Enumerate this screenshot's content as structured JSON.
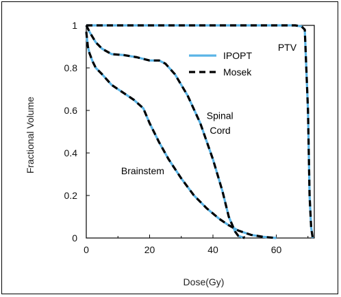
{
  "chart_data": {
    "type": "line",
    "title": "",
    "xlabel": "Dose(Gy)",
    "ylabel": "Fractional Volume",
    "xlim": [
      0,
      72
    ],
    "ylim": [
      0,
      1
    ],
    "x_ticks": [
      0,
      20,
      40,
      60
    ],
    "y_ticks": [
      0,
      0.2,
      0.4,
      0.6,
      0.8,
      1
    ],
    "x_tick_labels": [
      "0",
      "20",
      "40",
      "60"
    ],
    "y_tick_labels": [
      "0",
      "0.2",
      "0.4",
      "0.6",
      "0.8",
      "1"
    ],
    "grid": false,
    "legend_position": "top-right",
    "legend": [
      {
        "name": "IPOPT",
        "color": "#5ab4e6",
        "style": "solid"
      },
      {
        "name": "Mosek",
        "color": "#000000",
        "style": "dashed"
      }
    ],
    "annotations": [
      {
        "text": "PTV",
        "x": 60.5,
        "y": 0.88
      },
      {
        "text": "Spinal",
        "x": 38,
        "y": 0.56
      },
      {
        "text": "Cord",
        "x": 39,
        "y": 0.49
      },
      {
        "text": "Brainstem",
        "x": 11,
        "y": 0.3
      }
    ],
    "curves": [
      {
        "structure": "PTV",
        "x": [
          0,
          1,
          2,
          66,
          68,
          69,
          70,
          70.5,
          71,
          71.5
        ],
        "y": [
          1,
          1,
          1,
          1,
          0.995,
          0.98,
          0.6,
          0.2,
          0.05,
          0
        ]
      },
      {
        "structure": "Spinal Cord",
        "x": [
          0,
          1,
          3,
          5,
          8,
          12,
          16,
          20,
          23,
          25,
          28,
          32,
          36,
          40,
          43,
          45,
          47,
          48,
          50
        ],
        "y": [
          1,
          0.97,
          0.92,
          0.89,
          0.865,
          0.86,
          0.85,
          0.835,
          0.835,
          0.82,
          0.77,
          0.67,
          0.54,
          0.37,
          0.22,
          0.1,
          0.03,
          0.01,
          0
        ]
      },
      {
        "structure": "Brainstem",
        "x": [
          0,
          0.5,
          1,
          2,
          3,
          5,
          8,
          12,
          15,
          18,
          20,
          23,
          26,
          30,
          34,
          38,
          42,
          45,
          48,
          52,
          56,
          60
        ],
        "y": [
          0.97,
          0.9,
          0.87,
          0.83,
          0.8,
          0.77,
          0.72,
          0.68,
          0.65,
          0.61,
          0.54,
          0.45,
          0.37,
          0.28,
          0.2,
          0.14,
          0.09,
          0.06,
          0.035,
          0.015,
          0.005,
          0
        ]
      }
    ]
  },
  "colors": {
    "ipopt": "#5ab4e6",
    "mosek": "#000000"
  }
}
